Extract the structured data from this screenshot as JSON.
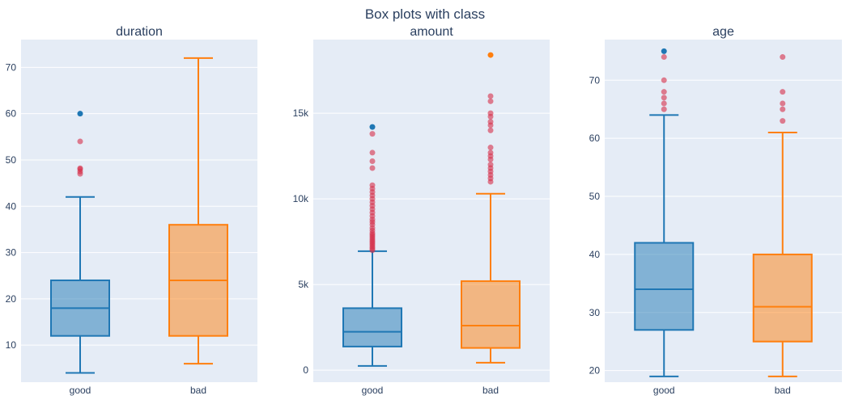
{
  "chart_data": {
    "title": "Box plots with class",
    "type": "box",
    "categories": [
      "good",
      "bad"
    ],
    "colors": {
      "good": "#1f77b4",
      "bad": "#ff7f0e",
      "outlier": "#d62f4a",
      "plot_bg": "#e5ecf6",
      "grid": "#ffffff",
      "text": "#2a3f5f"
    },
    "grid": true,
    "subplots": [
      {
        "title": "duration",
        "ylim": [
          2,
          76
        ],
        "yticks": [
          10,
          20,
          30,
          40,
          50,
          60,
          70
        ],
        "ytick_labels": [
          "10",
          "20",
          "30",
          "40",
          "50",
          "60",
          "70"
        ],
        "boxes": [
          {
            "category": "good",
            "min": 4,
            "q1": 12,
            "median": 18,
            "q3": 24,
            "max": 42,
            "outliers": [
              47,
              47.5,
              48,
              48.2,
              54,
              60
            ],
            "max_point": 60
          },
          {
            "category": "bad",
            "min": 6,
            "q1": 12,
            "median": 24,
            "q3": 36,
            "max": 72,
            "outliers": [],
            "max_point": null
          }
        ]
      },
      {
        "title": "amount",
        "ylim": [
          -700,
          19300
        ],
        "yticks": [
          0,
          5000,
          10000,
          15000
        ],
        "ytick_labels": [
          "0",
          "5k",
          "10k",
          "15k"
        ],
        "boxes": [
          {
            "category": "good",
            "min": 250,
            "q1": 1380,
            "median": 2240,
            "q3": 3620,
            "max": 6950,
            "outliers": [
              7000,
              7100,
              7200,
              7300,
              7400,
              7500,
              7600,
              7700,
              7800,
              7900,
              8000,
              8150,
              8300,
              8500,
              8650,
              8800,
              9000,
              9200,
              9400,
              9600,
              9800,
              10000,
              10200,
              10400,
              10600,
              10800,
              11800,
              12200,
              12700,
              13800,
              14200
            ],
            "max_point": 14200
          },
          {
            "category": "bad",
            "min": 440,
            "q1": 1300,
            "median": 2600,
            "q3": 5200,
            "max": 10300,
            "outliers": [
              11000,
              11200,
              11400,
              11600,
              11800,
              12000,
              12300,
              12500,
              12700,
              13000,
              14000,
              14300,
              14500,
              14800,
              15000,
              15700,
              16000,
              18400
            ],
            "max_point": 18400
          }
        ]
      },
      {
        "title": "age",
        "ylim": [
          18,
          77
        ],
        "yticks": [
          20,
          30,
          40,
          50,
          60,
          70
        ],
        "ytick_labels": [
          "20",
          "30",
          "40",
          "50",
          "60",
          "70"
        ],
        "boxes": [
          {
            "category": "good",
            "min": 19,
            "q1": 27,
            "median": 34,
            "q3": 42,
            "max": 64,
            "outliers": [
              65,
              66,
              67,
              68,
              70,
              74,
              75
            ],
            "max_point": 75
          },
          {
            "category": "bad",
            "min": 19,
            "q1": 25,
            "median": 31,
            "q3": 40,
            "max": 61,
            "outliers": [
              63,
              65,
              66,
              68,
              74
            ],
            "max_point": null
          }
        ]
      }
    ]
  }
}
